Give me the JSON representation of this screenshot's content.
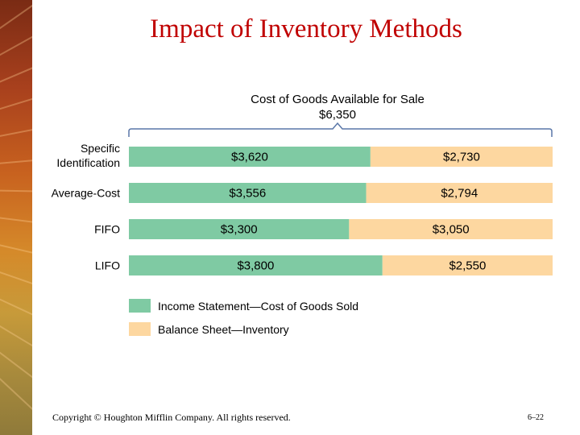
{
  "slide": {
    "title": "Impact of Inventory Methods",
    "copyright": "Copyright © Houghton Mifflin Company.  All rights reserved.",
    "slide_number": "6–22"
  },
  "colors": {
    "cogs": "#7fcaa3",
    "inventory": "#fdd7a0",
    "title": "#c00000",
    "bracket": "#5a77a8"
  },
  "chart_data": {
    "type": "bar",
    "stacked": true,
    "orientation": "horizontal",
    "title": "Cost of Goods Available for Sale",
    "subtitle": "$6,350",
    "total": 6350,
    "categories": [
      "Specific Identification",
      "Average-Cost",
      "FIFO",
      "LIFO"
    ],
    "category_lines": [
      [
        "Specific",
        "Identification"
      ],
      [
        "Average-Cost"
      ],
      [
        "FIFO"
      ],
      [
        "LIFO"
      ]
    ],
    "series": [
      {
        "name": "Income Statement—Cost of Goods Sold",
        "values": [
          3620,
          3556,
          3300,
          3800
        ],
        "labels": [
          "$3,620",
          "$3,556",
          "$3,300",
          "$3,800"
        ]
      },
      {
        "name": "Balance Sheet—Inventory",
        "values": [
          2730,
          2794,
          3050,
          2550
        ],
        "labels": [
          "$2,730",
          "$2,794",
          "$3,050",
          "$2,550"
        ]
      }
    ],
    "xlim": [
      0,
      6350
    ],
    "grid": false,
    "legend": "bottom-left"
  }
}
